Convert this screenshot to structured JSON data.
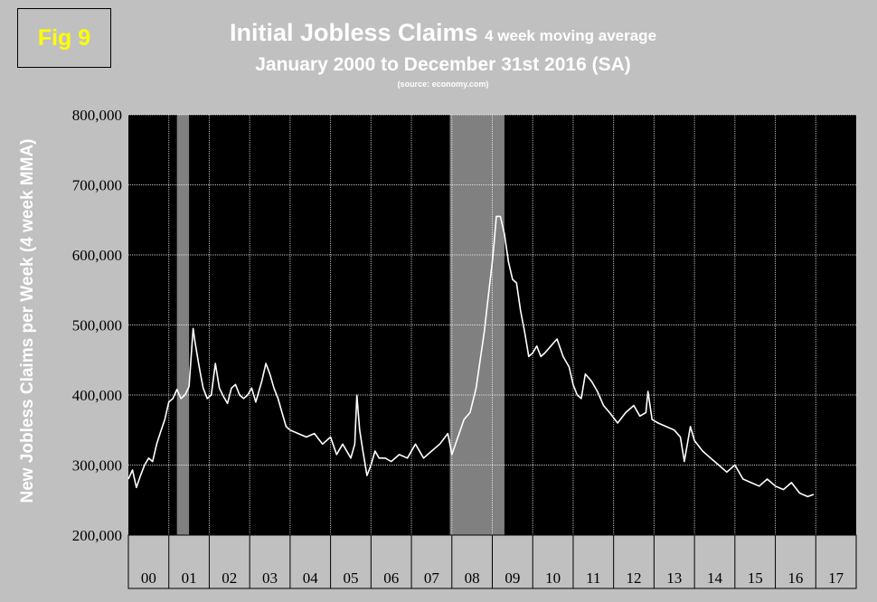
{
  "figure": {
    "label": "Fig 9",
    "title_main": "Initial Jobless Claims",
    "title_sub": "4 week moving average",
    "title_line2": "January 2000 to December 31st 2016 (SA)",
    "source": "(source: economy.com)"
  },
  "chart_data": {
    "type": "line",
    "title": "Initial Jobless Claims 4 week moving average",
    "subtitle": "January 2000 to December 31st 2016 (SA)",
    "ylabel": "New Jobless Claims per Week (4 week MMA)",
    "xlabel": "",
    "ylim": [
      200000,
      800000
    ],
    "xlim": [
      2000,
      2018
    ],
    "y_ticks": [
      200000,
      300000,
      400000,
      500000,
      600000,
      700000,
      800000
    ],
    "y_tick_labels": [
      "200,000",
      "300,000",
      "400,000",
      "500,000",
      "600,000",
      "700,000",
      "800,000"
    ],
    "x_tick_labels": [
      "00",
      "01",
      "02",
      "03",
      "04",
      "05",
      "06",
      "07",
      "08",
      "09",
      "10",
      "11",
      "12",
      "13",
      "14",
      "15",
      "16",
      "17"
    ],
    "grid": true,
    "legend": "none",
    "recessions": [
      {
        "start": 2001.2,
        "end": 2001.5
      },
      {
        "start": 2007.95,
        "end": 2009.3
      }
    ],
    "colors": {
      "plot_bg": "#000000",
      "line": "#ffffff",
      "recession": "#808080",
      "page_bg": "#c0c0c0",
      "fig_label": "#ffff00"
    },
    "series": [
      {
        "x": [
          2000.0,
          2000.1,
          2000.2,
          2000.3,
          2000.4,
          2000.5,
          2000.6,
          2000.7,
          2000.8,
          2000.9,
          2001.0,
          2001.1,
          2001.2,
          2001.3,
          2001.4,
          2001.5,
          2001.6,
          2001.65,
          2001.75,
          2001.85,
          2001.95,
          2002.05,
          2002.15,
          2002.25,
          2002.35,
          2002.45,
          2002.55,
          2002.65,
          2002.75,
          2002.85,
          2002.95,
          2003.05,
          2003.15,
          2003.3,
          2003.4,
          2003.5,
          2003.6,
          2003.7,
          2003.8,
          2003.9,
          2004.0,
          2004.2,
          2004.4,
          2004.6,
          2004.8,
          2005.0,
          2005.15,
          2005.3,
          2005.5,
          2005.6,
          2005.65,
          2005.72,
          2005.8,
          2005.9,
          2006.0,
          2006.1,
          2006.2,
          2006.35,
          2006.5,
          2006.7,
          2006.9,
          2007.1,
          2007.3,
          2007.5,
          2007.7,
          2007.9,
          2008.0,
          2008.15,
          2008.3,
          2008.45,
          2008.6,
          2008.7,
          2008.8,
          2008.9,
          2009.0,
          2009.05,
          2009.1,
          2009.2,
          2009.3,
          2009.4,
          2009.5,
          2009.6,
          2009.7,
          2009.8,
          2009.9,
          2010.0,
          2010.1,
          2010.2,
          2010.3,
          2010.45,
          2010.6,
          2010.75,
          2010.9,
          2011.0,
          2011.1,
          2011.2,
          2011.3,
          2011.45,
          2011.6,
          2011.75,
          2011.9,
          2012.1,
          2012.3,
          2012.5,
          2012.65,
          2012.8,
          2012.85,
          2012.95,
          2013.1,
          2013.3,
          2013.5,
          2013.65,
          2013.75,
          2013.9,
          2014.0,
          2014.2,
          2014.4,
          2014.6,
          2014.8,
          2015.0,
          2015.2,
          2015.4,
          2015.6,
          2015.8,
          2016.0,
          2016.2,
          2016.4,
          2016.6,
          2016.8,
          2016.95
        ],
        "y": [
          280000,
          293000,
          268000,
          285000,
          300000,
          310000,
          305000,
          330000,
          348000,
          365000,
          390000,
          395000,
          408000,
          395000,
          400000,
          412000,
          495000,
          475000,
          440000,
          410000,
          395000,
          400000,
          445000,
          410000,
          398000,
          388000,
          410000,
          415000,
          400000,
          395000,
          400000,
          410000,
          390000,
          420000,
          445000,
          430000,
          410000,
          395000,
          375000,
          355000,
          350000,
          345000,
          340000,
          345000,
          330000,
          340000,
          315000,
          330000,
          310000,
          330000,
          400000,
          350000,
          320000,
          285000,
          300000,
          320000,
          310000,
          310000,
          305000,
          315000,
          310000,
          330000,
          310000,
          320000,
          330000,
          345000,
          315000,
          340000,
          365000,
          375000,
          410000,
          450000,
          490000,
          540000,
          590000,
          620000,
          655000,
          655000,
          630000,
          590000,
          565000,
          560000,
          520000,
          490000,
          455000,
          460000,
          470000,
          455000,
          460000,
          470000,
          480000,
          455000,
          440000,
          415000,
          400000,
          395000,
          430000,
          420000,
          405000,
          385000,
          375000,
          360000,
          375000,
          385000,
          370000,
          375000,
          405000,
          365000,
          360000,
          355000,
          350000,
          340000,
          305000,
          355000,
          335000,
          320000,
          310000,
          300000,
          290000,
          300000,
          280000,
          275000,
          270000,
          280000,
          270000,
          265000,
          275000,
          260000,
          255000,
          258000
        ]
      }
    ]
  }
}
